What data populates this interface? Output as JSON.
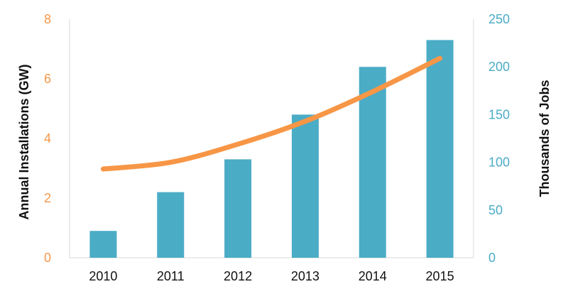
{
  "chart_data": {
    "type": "bar",
    "title": "",
    "categories": [
      "2010",
      "2011",
      "2012",
      "2013",
      "2014",
      "2015"
    ],
    "x_tick_labels": [
      "2010",
      "2011",
      "2012",
      "2013",
      "2014",
      "2015"
    ],
    "series": [
      {
        "name": "Annual Installations (GW)",
        "type": "bar",
        "axis": "left",
        "color": "#4bacc6",
        "values": [
          0.9,
          2.2,
          3.3,
          4.8,
          6.4,
          7.3
        ]
      },
      {
        "name": "Thousands of Jobs",
        "type": "line",
        "axis": "right",
        "color": "#f79646",
        "values": [
          93,
          100,
          119,
          143,
          174,
          209
        ]
      }
    ],
    "left_axis": {
      "label": "Annual Installations (GW)",
      "ylim": [
        0,
        8
      ],
      "ticks": [
        "0",
        "2",
        "4",
        "6",
        "8"
      ],
      "color": "#f79646"
    },
    "right_axis": {
      "label": "Thousands of Jobs",
      "ylim": [
        0,
        250
      ],
      "ticks": [
        "0",
        "50",
        "100",
        "150",
        "200",
        "250"
      ],
      "color": "#4bacc6"
    },
    "grid": false,
    "legend": "none"
  }
}
